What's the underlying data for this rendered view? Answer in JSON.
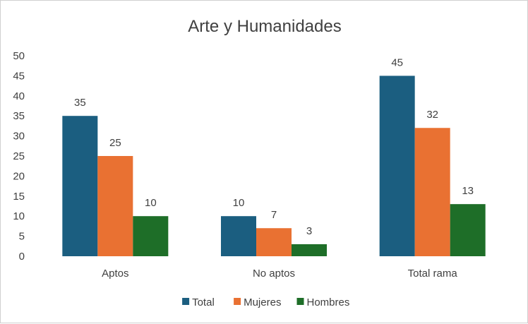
{
  "chart_data": {
    "type": "bar",
    "title": "Arte y Humanidades",
    "categories": [
      "Aptos",
      "No aptos",
      "Total rama"
    ],
    "series": [
      {
        "name": "Total",
        "values": [
          35,
          10,
          45
        ],
        "color": "#1b5e80"
      },
      {
        "name": "Mujeres",
        "values": [
          25,
          7,
          32
        ],
        "color": "#e97132"
      },
      {
        "name": "Hombres",
        "values": [
          10,
          3,
          13
        ],
        "color": "#1e6e28"
      }
    ],
    "ylim": [
      0,
      50
    ],
    "yticks": [
      0,
      5,
      10,
      15,
      20,
      25,
      30,
      35,
      40,
      45,
      50
    ],
    "grid": false,
    "legend_position": "bottom",
    "data_labels": true
  }
}
